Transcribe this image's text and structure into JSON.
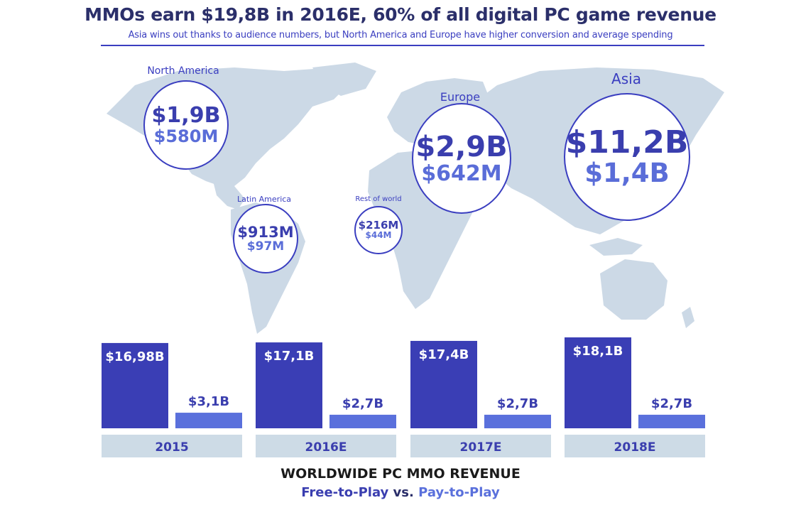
{
  "header": {
    "title": "MMOs earn $19,8B in 2016E, 60% of all digital PC game revenue",
    "subtitle": "Asia wins out thanks to audience numbers, but North America and Europe have higher conversion and average spending"
  },
  "regions": [
    {
      "id": "north-america",
      "label": "North America",
      "f2p": "$1,9B",
      "p2p": "$580M"
    },
    {
      "id": "latin-america",
      "label": "Latin America",
      "f2p": "$913M",
      "p2p": "$97M"
    },
    {
      "id": "rest-of-world",
      "label": "Rest of world",
      "f2p": "$216M",
      "p2p": "$44M"
    },
    {
      "id": "europe",
      "label": "Europe",
      "f2p": "$2,9B",
      "p2p": "$642M"
    },
    {
      "id": "asia",
      "label": "Asia",
      "f2p": "$11,2B",
      "p2p": "$1,4B"
    }
  ],
  "colors": {
    "f2p": "#3a3eb5",
    "p2p": "#5a70dc",
    "map": "#ccd9e6",
    "year_band": "#cddbe6",
    "accent": "#3a3ec0"
  },
  "chart_data": {
    "type": "bar",
    "categories": [
      "2015",
      "2016E",
      "2017E",
      "2018E"
    ],
    "series": [
      {
        "name": "Free-to-Play",
        "values": [
          16.98,
          17.1,
          17.4,
          18.1
        ],
        "labels": [
          "$16,98B",
          "$17,1B",
          "$17,4B",
          "$18,1B"
        ]
      },
      {
        "name": "Pay-to-Play",
        "values": [
          3.1,
          2.7,
          2.7,
          2.7
        ],
        "labels": [
          "$3,1B",
          "$2,7B",
          "$2,7B",
          "$2,7B"
        ]
      }
    ],
    "unit": "$B",
    "title": "WORLDWIDE PC MMO REVENUE"
  },
  "footer": {
    "title": "WORLDWIDE PC MMO REVENUE",
    "f2p_label": "Free-to-Play",
    "vs_label": " vs. ",
    "p2p_label": "Pay-to-Play"
  }
}
